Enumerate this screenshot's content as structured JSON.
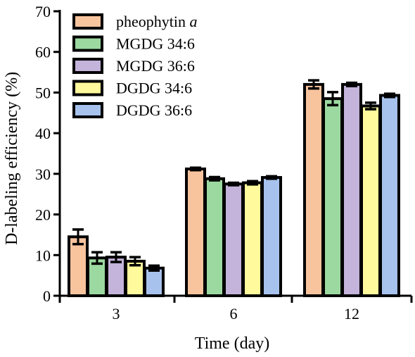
{
  "chart_data": {
    "type": "bar",
    "xlabel": "Time (day)",
    "ylabel": "D-labeling efficiency (%)",
    "ylim": [
      0,
      70
    ],
    "yticks": [
      "0",
      "10",
      "20",
      "30",
      "40",
      "50",
      "60",
      "70"
    ],
    "categories": [
      "3",
      "6",
      "12"
    ],
    "legend_position": "top-left",
    "grid": false,
    "series": [
      {
        "name_main": "pheophytin ",
        "name_italic": "a",
        "color": "#f8c49e",
        "values": [
          14.5,
          31.2,
          52.0
        ],
        "errors": [
          1.8,
          0.3,
          1.0
        ]
      },
      {
        "name_main": "MGDG 34:6",
        "name_italic": "",
        "color": "#9cd9a0",
        "values": [
          9.3,
          28.8,
          48.5
        ],
        "errors": [
          1.4,
          0.4,
          1.6
        ]
      },
      {
        "name_main": "MGDG 36:6",
        "name_italic": "",
        "color": "#c4b3da",
        "values": [
          9.5,
          27.5,
          52.0
        ],
        "errors": [
          1.2,
          0.3,
          0.4
        ]
      },
      {
        "name_main": "DGDG 34:6",
        "name_italic": "",
        "color": "#fffa9c",
        "values": [
          8.5,
          27.8,
          46.7
        ],
        "errors": [
          1.0,
          0.4,
          0.8
        ]
      },
      {
        "name_main": "DGDG 36:6",
        "name_italic": "",
        "color": "#a7c2ec",
        "values": [
          6.8,
          29.1,
          49.3
        ],
        "errors": [
          0.6,
          0.3,
          0.4
        ]
      }
    ]
  }
}
